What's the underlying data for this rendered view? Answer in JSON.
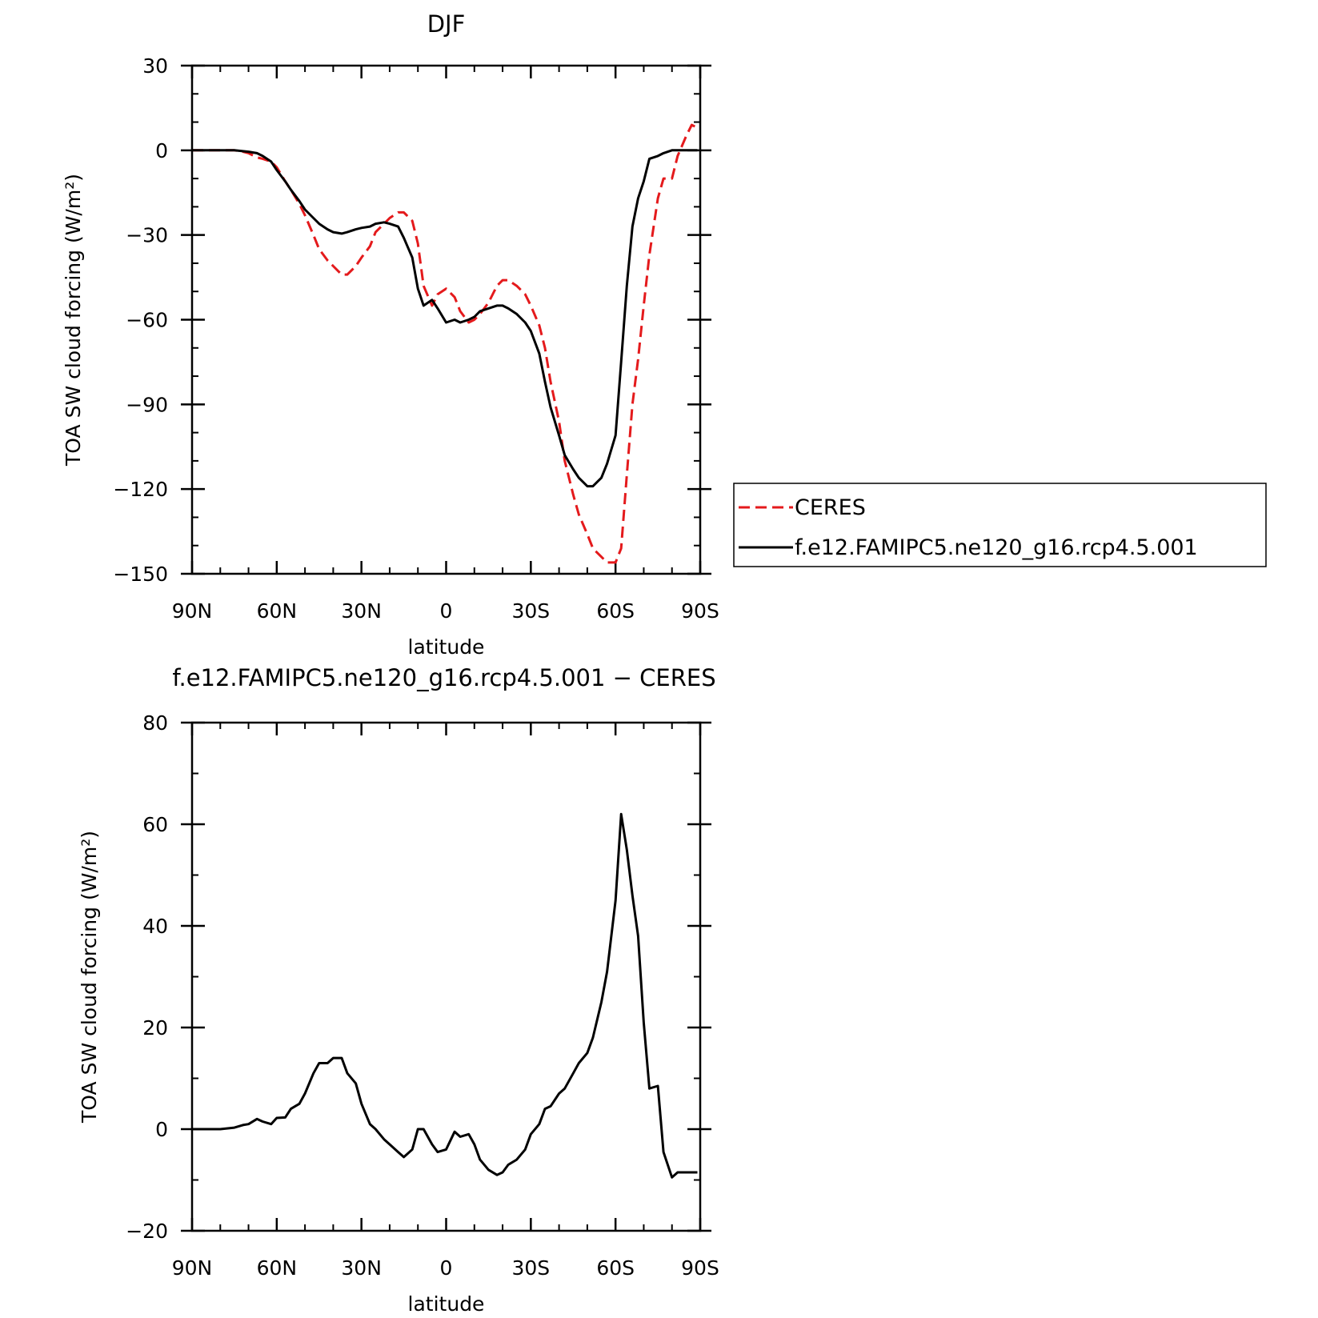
{
  "chart_data": [
    {
      "type": "line",
      "title": "DJF",
      "xlabel": "latitude",
      "ylabel": "TOA SW cloud forcing (W/m²)",
      "xlim": [
        90,
        -90
      ],
      "ylim": [
        -150,
        30
      ],
      "x_ticks": [
        "90N",
        "60N",
        "30N",
        "0",
        "30S",
        "60S",
        "90S"
      ],
      "y_ticks": [
        "30",
        "0",
        "−30",
        "−60",
        "−90",
        "−120",
        "−150"
      ],
      "legend": "right",
      "series": [
        {
          "name": "CERES",
          "color": "#e41a1c",
          "dash": "dashed",
          "x": [
            90,
            85,
            80,
            75,
            72,
            70,
            67,
            65,
            62,
            60,
            57,
            55,
            52,
            50,
            47,
            45,
            42,
            40,
            37,
            35,
            32,
            30,
            27,
            25,
            22,
            20,
            17,
            15,
            12,
            10,
            8,
            5,
            3,
            0,
            -3,
            -5,
            -8,
            -10,
            -12,
            -15,
            -18,
            -20,
            -22,
            -25,
            -28,
            -30,
            -33,
            -35,
            -37,
            -40,
            -42,
            -45,
            -47,
            -50,
            -52,
            -55,
            -57,
            -60,
            -62,
            -64,
            -66,
            -68,
            -70,
            -72,
            -75,
            -77,
            -80,
            -82,
            -85,
            -87,
            -89
          ],
          "values": [
            0,
            0,
            0,
            0,
            -0.5,
            -1,
            -2.5,
            -3,
            -4,
            -6,
            -11,
            -14,
            -19,
            -23,
            -30,
            -35,
            -39,
            -41,
            -44,
            -44,
            -41,
            -38,
            -34,
            -29,
            -26,
            -24,
            -22,
            -22,
            -25,
            -33,
            -48,
            -55,
            -51,
            -49,
            -52,
            -57,
            -61,
            -60,
            -58,
            -54,
            -48,
            -46,
            -46,
            -48,
            -51,
            -55,
            -62,
            -70,
            -82,
            -96,
            -110,
            -122,
            -129,
            -136,
            -141,
            -144,
            -146,
            -146,
            -141,
            -115,
            -90,
            -74,
            -55,
            -37,
            -17,
            -10,
            -10,
            -2,
            5,
            9,
            8
          ]
        },
        {
          "name": "f.e12.FAMIPC5.ne120_g16.rcp4.5.001",
          "color": "#000000",
          "dash": "solid",
          "x": [
            90,
            85,
            80,
            75,
            72,
            70,
            67,
            65,
            62,
            60,
            57,
            55,
            52,
            50,
            47,
            45,
            42,
            40,
            37,
            35,
            32,
            30,
            27,
            25,
            22,
            20,
            17,
            15,
            12,
            10,
            8,
            5,
            3,
            0,
            -3,
            -5,
            -8,
            -10,
            -12,
            -15,
            -18,
            -20,
            -22,
            -25,
            -28,
            -30,
            -33,
            -35,
            -37,
            -40,
            -42,
            -45,
            -47,
            -50,
            -52,
            -55,
            -57,
            -60,
            -62,
            -64,
            -66,
            -68,
            -70,
            -72,
            -75,
            -77,
            -80,
            -82,
            -85,
            -87,
            -89
          ],
          "values": [
            0,
            0,
            0,
            0,
            -0.3,
            -0.5,
            -1,
            -2,
            -4,
            -7,
            -11,
            -14,
            -18,
            -21,
            -24,
            -26,
            -28,
            -29,
            -29.5,
            -29,
            -28,
            -27.5,
            -27,
            -26,
            -25.5,
            -26,
            -27,
            -31,
            -38,
            -49,
            -55,
            -53,
            -56,
            -61,
            -60,
            -61,
            -60,
            -59,
            -57,
            -56,
            -55,
            -55,
            -56,
            -58,
            -61,
            -64,
            -72,
            -82,
            -91,
            -101,
            -108,
            -113,
            -116,
            -119,
            -119,
            -116,
            -111,
            -101,
            -75,
            -48,
            -27,
            -17,
            -11,
            -3,
            -2,
            -1,
            0,
            0,
            0,
            0,
            0
          ]
        }
      ]
    },
    {
      "type": "line",
      "title": "f.e12.FAMIPC5.ne120_g16.rcp4.5.001 − CERES",
      "xlabel": "latitude",
      "ylabel": "TOA SW cloud forcing (W/m²)",
      "xlim": [
        90,
        -90
      ],
      "ylim": [
        -20,
        80
      ],
      "x_ticks": [
        "90N",
        "60N",
        "30N",
        "0",
        "30S",
        "60S",
        "90S"
      ],
      "y_ticks": [
        "80",
        "60",
        "40",
        "20",
        "0",
        "−20"
      ],
      "series": [
        {
          "color": "#000000",
          "dash": "solid",
          "x": [
            90,
            85,
            80,
            75,
            72,
            70,
            67,
            65,
            62,
            60,
            57,
            55,
            52,
            50,
            47,
            45,
            42,
            40,
            37,
            35,
            32,
            30,
            27,
            25,
            22,
            20,
            17,
            15,
            12,
            10,
            8,
            5,
            3,
            0,
            -3,
            -5,
            -8,
            -10,
            -12,
            -15,
            -18,
            -20,
            -22,
            -25,
            -28,
            -30,
            -33,
            -35,
            -37,
            -40,
            -42,
            -45,
            -47,
            -50,
            -52,
            -55,
            -57,
            -60,
            -62,
            -64,
            -66,
            -68,
            -70,
            -72,
            -75,
            -77,
            -80,
            -82,
            -85,
            -87,
            -89
          ],
          "values": [
            0,
            0,
            0,
            0.3,
            0.8,
            1,
            2,
            1.5,
            1,
            2.2,
            2.3,
            4,
            5,
            7,
            11,
            13,
            13,
            14,
            14,
            11,
            9,
            5,
            1,
            0,
            -2,
            -3,
            -4.5,
            -5.5,
            -4,
            0,
            0,
            -3,
            -4.5,
            -4,
            -0.5,
            -1.5,
            -1,
            -3,
            -6,
            -8,
            -9,
            -8.5,
            -7,
            -6,
            -4,
            -1,
            1,
            4,
            4.5,
            7,
            8,
            11,
            13,
            15,
            18,
            25,
            31,
            45,
            62,
            55,
            46,
            38,
            21,
            8,
            8.5,
            -4.5,
            -9.5,
            -8.5,
            -8.5,
            -8.5,
            -8.5
          ]
        }
      ]
    }
  ]
}
